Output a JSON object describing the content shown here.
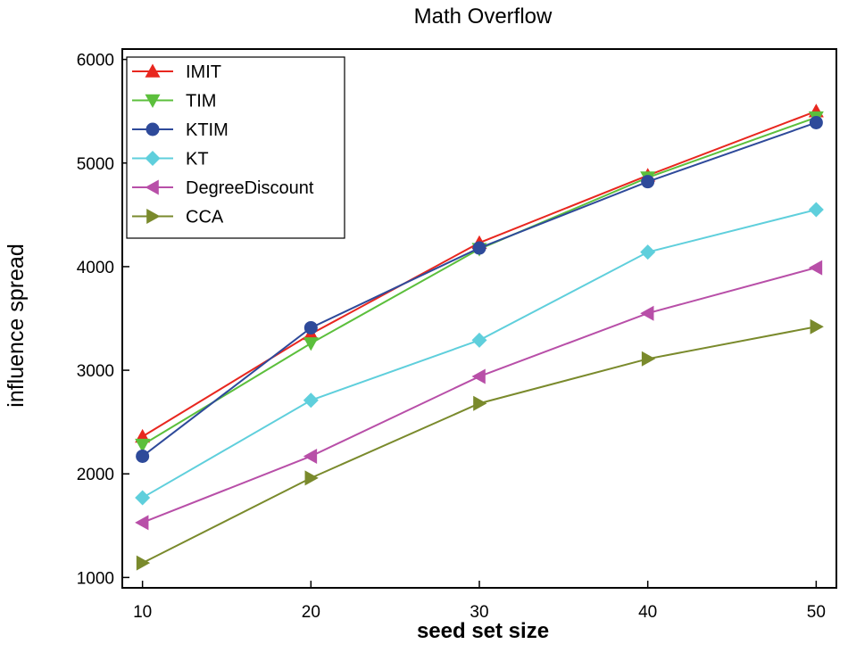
{
  "chart_data": {
    "type": "line",
    "title": "Math Overflow",
    "xlabel": "seed set size",
    "ylabel": "influence spread",
    "x": [
      10,
      20,
      30,
      40,
      50
    ],
    "xticks": [
      "10",
      "20",
      "30",
      "40",
      "50"
    ],
    "yticks": [
      "1000",
      "2000",
      "3000",
      "4000",
      "5000",
      "6000"
    ],
    "xlim": [
      8.8,
      51.2
    ],
    "ylim": [
      900,
      6100
    ],
    "legend_position": "top-left",
    "series": [
      {
        "name": "IMIT",
        "color": "#e8271f",
        "marker": "triangle-up",
        "values": [
          2360,
          3350,
          4230,
          4880,
          5500
        ]
      },
      {
        "name": "TIM",
        "color": "#5cbf3c",
        "marker": "triangle-down",
        "values": [
          2280,
          3260,
          4170,
          4860,
          5440
        ]
      },
      {
        "name": "KTIM",
        "color": "#2e4a9a",
        "marker": "circle",
        "values": [
          2170,
          3410,
          4180,
          4820,
          5390
        ]
      },
      {
        "name": "KT",
        "color": "#5fcfdc",
        "marker": "diamond",
        "values": [
          1770,
          2710,
          3290,
          4140,
          4550
        ]
      },
      {
        "name": "DegreeDiscount",
        "color": "#b84fa8",
        "marker": "triangle-left",
        "values": [
          1530,
          2170,
          2940,
          3550,
          3990
        ]
      },
      {
        "name": "CCA",
        "color": "#7a8a2c",
        "marker": "triangle-right",
        "values": [
          1140,
          1960,
          2680,
          3110,
          3420
        ]
      }
    ]
  }
}
